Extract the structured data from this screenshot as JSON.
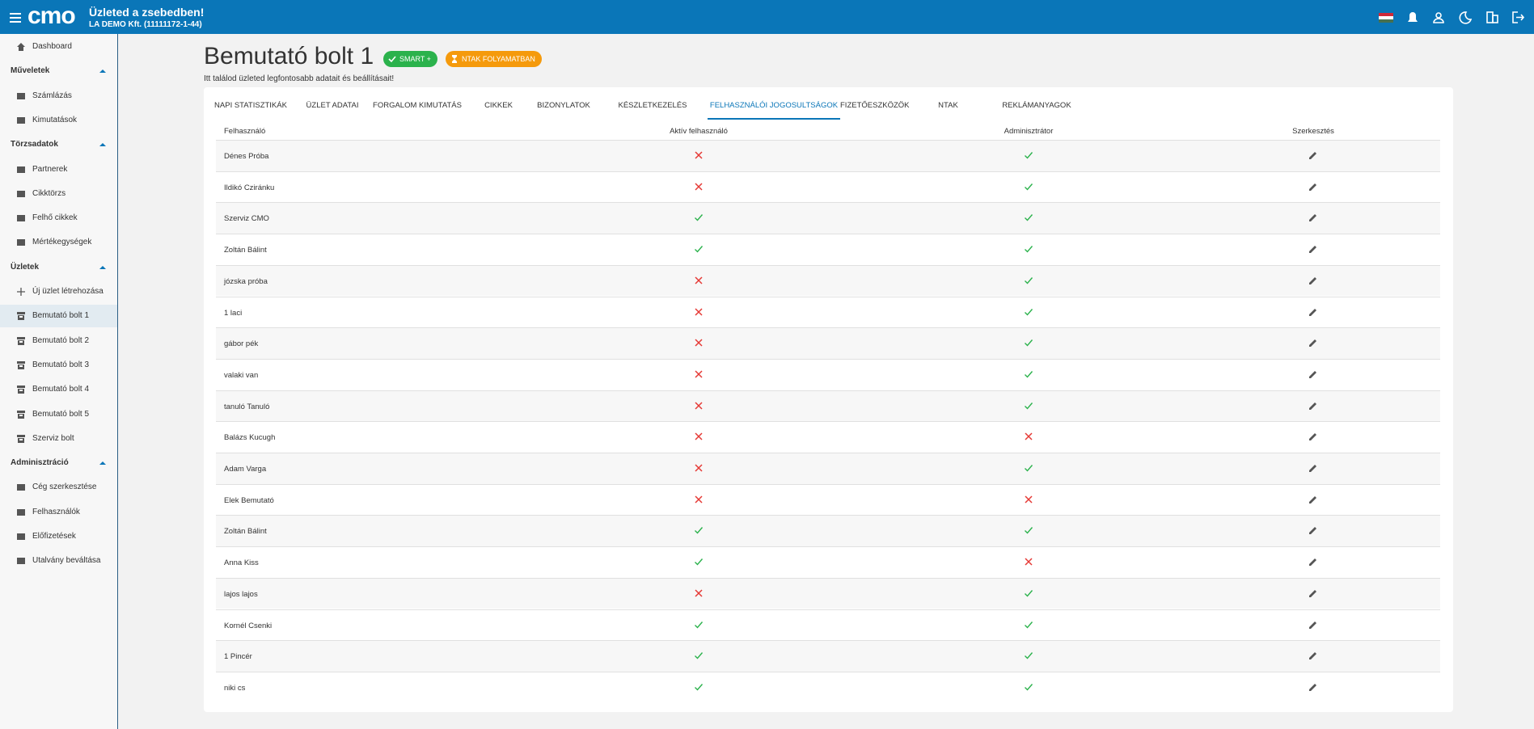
{
  "header": {
    "logo": "cmo",
    "title": "Üzleted a zsebedben!",
    "company": "LA DEMO Kft. (11111172-1-44)"
  },
  "sidebar": {
    "top": "Dashboard",
    "sections": [
      {
        "title": "Műveletek",
        "items": [
          "Számlázás",
          "Kimutatások"
        ]
      },
      {
        "title": "Törzsadatok",
        "items": [
          "Partnerek",
          "Cikktörzs",
          "Felhő cikkek",
          "Mértékegységek"
        ]
      },
      {
        "title": "Üzletek",
        "items": [
          "Új üzlet létrehozása",
          "Bemutató bolt 1",
          "Bemutató bolt 2",
          "Bemutató bolt 3",
          "Bemutató bolt 4",
          "Bemutató bolt 5",
          "Szerviz bolt"
        ]
      },
      {
        "title": "Adminisztráció",
        "items": [
          "Cég szerkesztése",
          "Felhasználók",
          "Előfizetések",
          "Utalvány beváltása"
        ]
      }
    ],
    "active": "Bemutató bolt 1"
  },
  "page": {
    "title": "Bemutató bolt 1",
    "badges": [
      "SMART +",
      "NTAK FOLYAMATBAN"
    ],
    "subtitle": "Itt találod üzleted legfontosabb adatait és beállításait!"
  },
  "tabs": {
    "items": [
      "NAPI STATISZTIKÁK",
      "ÜZLET ADATAI",
      "FORGALOM KIMUTATÁS",
      "CIKKEK",
      "BIZONYLATOK",
      "KÉSZLETKEZELÉS",
      "FELHASZNÁLÓI JOGOSULTSÁGOK",
      "FIZETŐESZKÖZÖK",
      "NTAK",
      "REKLÁMANYAGOK"
    ],
    "active": 6
  },
  "table": {
    "columns": [
      "Felhasználó",
      "Aktív felhasználó",
      "Adminisztrátor",
      "Szerkesztés"
    ],
    "rows": [
      {
        "name": "Dénes Próba",
        "active": false,
        "admin": true
      },
      {
        "name": "Ildikó Cziránku",
        "active": false,
        "admin": true
      },
      {
        "name": "Szerviz CMO",
        "active": true,
        "admin": true
      },
      {
        "name": "Zoltán Bálint",
        "active": true,
        "admin": true
      },
      {
        "name": "józska próba",
        "active": false,
        "admin": true
      },
      {
        "name": "1 laci",
        "active": false,
        "admin": true
      },
      {
        "name": "gábor pék",
        "active": false,
        "admin": true
      },
      {
        "name": "valaki van",
        "active": false,
        "admin": true
      },
      {
        "name": "tanuló Tanuló",
        "active": false,
        "admin": true
      },
      {
        "name": "Balázs Kucugh",
        "active": false,
        "admin": false
      },
      {
        "name": "Adam Varga",
        "active": false,
        "admin": true
      },
      {
        "name": "Elek Bemutató",
        "active": false,
        "admin": false
      },
      {
        "name": "Zoltán Bálint",
        "active": true,
        "admin": true
      },
      {
        "name": "Anna Kiss",
        "active": true,
        "admin": false
      },
      {
        "name": "lajos lajos",
        "active": false,
        "admin": true
      },
      {
        "name": "Kornél Csenki",
        "active": true,
        "admin": true
      },
      {
        "name": "1 Pincér",
        "active": true,
        "admin": true
      },
      {
        "name": "niki cs",
        "active": true,
        "admin": true
      }
    ]
  }
}
